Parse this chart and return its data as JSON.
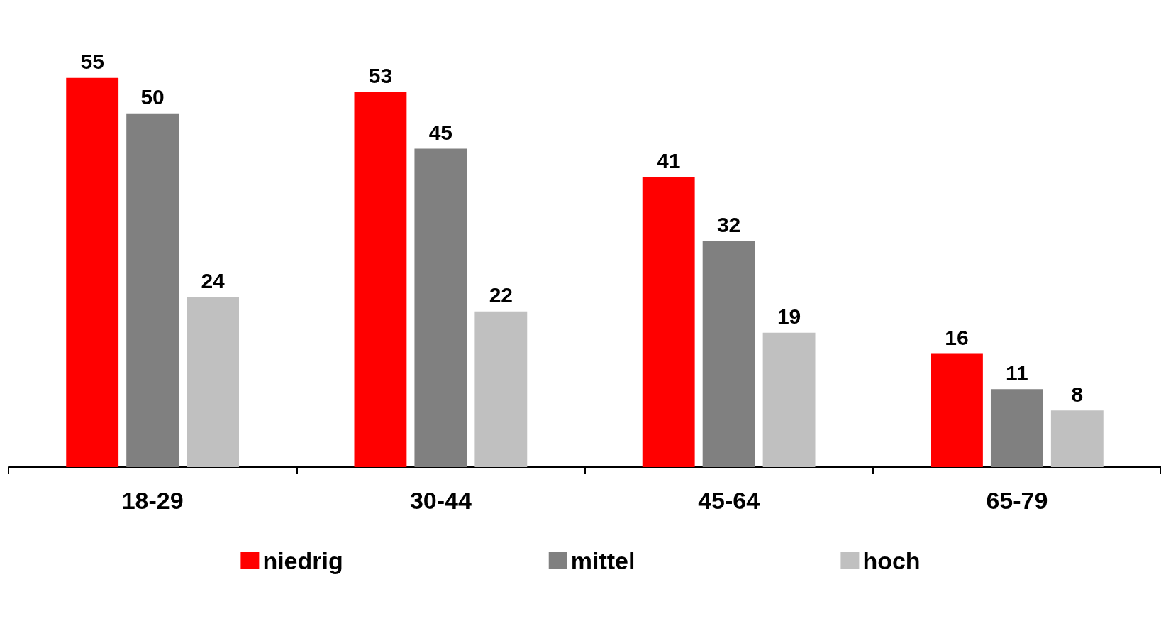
{
  "chart_data": {
    "type": "bar",
    "categories": [
      "18-29",
      "30-44",
      "45-64",
      "65-79"
    ],
    "series": [
      {
        "name": "niedrig",
        "color": "#ff0000",
        "values": [
          55,
          53,
          41,
          16
        ]
      },
      {
        "name": "mittel",
        "color": "#808080",
        "values": [
          50,
          45,
          32,
          11
        ]
      },
      {
        "name": "hoch",
        "color": "#c0c0c0",
        "values": [
          24,
          22,
          19,
          8
        ]
      }
    ],
    "data_labels": true,
    "legend": "bottom",
    "grid": false
  }
}
